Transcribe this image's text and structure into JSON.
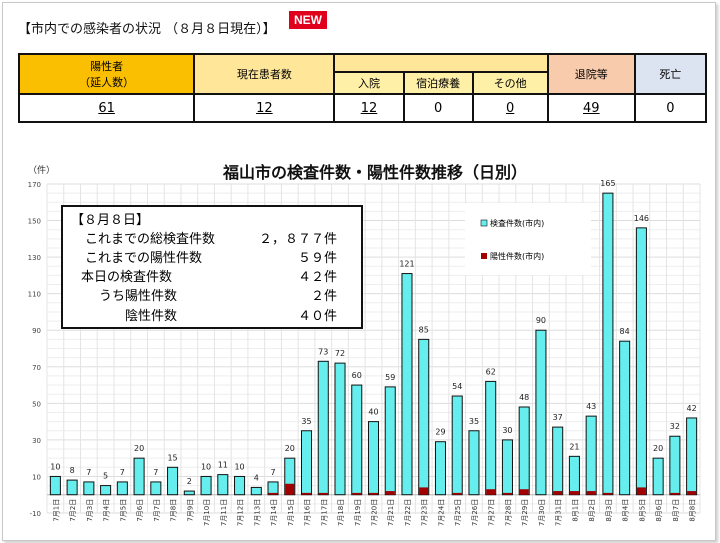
{
  "heading": "【市内での感染者の状況 （８月８日現在）】",
  "badge": "NEW",
  "table": {
    "headers": {
      "positive": "陽性者",
      "positive_sub": "（延人数）",
      "current": "現在患者数",
      "hospital": "入院",
      "hotel": "宿泊療養",
      "other": "その他",
      "discharged": "退院等",
      "death": "死亡"
    },
    "values": {
      "positive": "61",
      "current": "12",
      "hospital": "12",
      "hotel": "0",
      "other": "0",
      "discharged": "49",
      "death": "0"
    }
  },
  "note": {
    "date": "【８月８日】",
    "rows": [
      {
        "label": "これまでの総検査件数",
        "value": "２，８７７件"
      },
      {
        "label": "これまでの陽性件数",
        "value": "５９件"
      },
      {
        "label": "本日の検査件数",
        "value": "４２件"
      },
      {
        "label": "うち陽性件数",
        "value": "２件"
      },
      {
        "label": "陰性件数",
        "value": "４０件"
      }
    ]
  },
  "chart_data": {
    "type": "bar",
    "title": "福山市の検査件数・陽性件数推移（日別）",
    "ylabel": "（件）",
    "ylim": [
      -10,
      170
    ],
    "yticks": [
      170,
      150,
      130,
      110,
      90,
      70,
      50,
      30,
      10,
      -10
    ],
    "grid": true,
    "legend_position": "top-right",
    "categories": [
      "7月1日",
      "7月2日",
      "7月3日",
      "7月4日",
      "7月5日",
      "7月6日",
      "7月7日",
      "7月8日",
      "7月9日",
      "7月10日",
      "7月11日",
      "7月12日",
      "7月13日",
      "7月14日",
      "7月15日",
      "7月16日",
      "7月17日",
      "7月18日",
      "7月19日",
      "7月20日",
      "7月21日",
      "7月22日",
      "7月23日",
      "7月24日",
      "7月25日",
      "7月26日",
      "7月27日",
      "7月28日",
      "7月29日",
      "7月30日",
      "7月31日",
      "8月1日",
      "8月2日",
      "8月3日",
      "8月4日",
      "8月5日",
      "8月6日",
      "8月7日",
      "8月8日"
    ],
    "series": [
      {
        "name": "検査件数(市内)",
        "color": "#66eeee",
        "values": [
          10,
          8,
          7,
          5,
          7,
          20,
          7,
          15,
          2,
          10,
          11,
          10,
          4,
          7,
          20,
          35,
          73,
          72,
          60,
          40,
          59,
          121,
          85,
          29,
          54,
          35,
          62,
          30,
          48,
          90,
          37,
          21,
          43,
          165,
          84,
          146,
          20,
          32,
          42
        ]
      },
      {
        "name": "陽性件数(市内)",
        "color": "#a00000",
        "values": [
          0,
          0,
          0,
          0,
          0,
          0,
          0,
          0,
          0,
          0,
          0,
          0,
          0,
          1,
          6,
          1,
          1,
          0,
          1,
          1,
          2,
          0,
          4,
          0,
          1,
          0,
          3,
          1,
          3,
          0,
          2,
          2,
          2,
          1,
          0,
          4,
          0,
          1,
          2
        ]
      }
    ]
  }
}
